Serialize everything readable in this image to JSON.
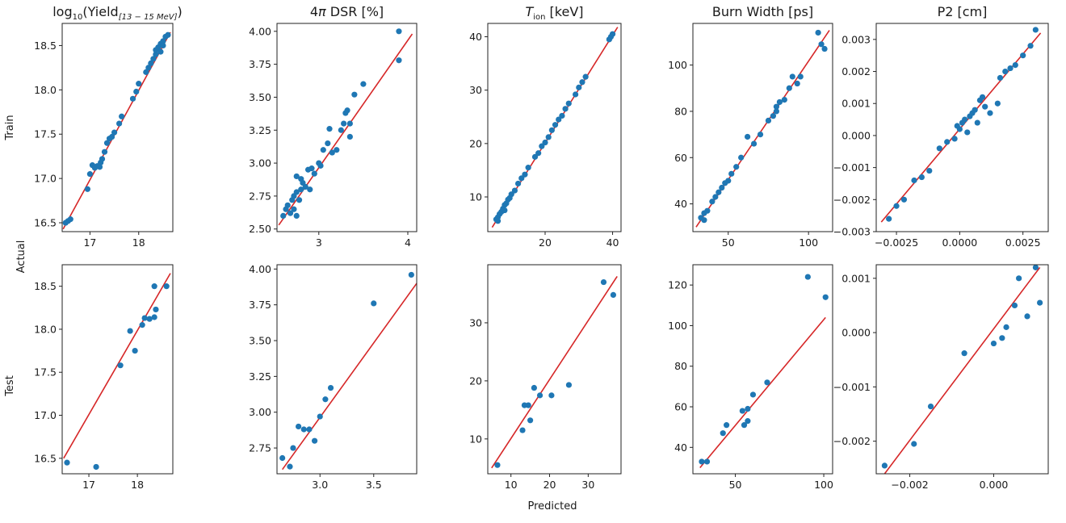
{
  "figure": {
    "x_label": "Predicted",
    "y_label": "Actual",
    "row_labels": [
      "Train",
      "Test"
    ],
    "point_color": "#1f77b4",
    "line_color": "#d62728"
  },
  "chart_data": [
    {
      "type": "scatter",
      "row": "Train",
      "title_parts": [
        "log",
        "10",
        "(Yield",
        "[13 − 15 MeV]",
        ")"
      ],
      "xlim": [
        16.43,
        18.7
      ],
      "ylim": [
        16.4,
        18.75
      ],
      "xticks": [
        17,
        18
      ],
      "xtick_labels": [
        "17",
        "18"
      ],
      "yticks": [
        16.5,
        17.0,
        17.5,
        18.0,
        18.5
      ],
      "ytick_labels": [
        "16.5",
        "17.0",
        "17.5",
        "18.0",
        "18.5"
      ],
      "fit_line": [
        [
          16.45,
          16.43
        ],
        [
          18.65,
          18.65
        ]
      ],
      "points": [
        [
          16.5,
          16.5
        ],
        [
          16.55,
          16.52
        ],
        [
          16.6,
          16.54
        ],
        [
          16.95,
          16.88
        ],
        [
          17.0,
          17.05
        ],
        [
          17.05,
          17.15
        ],
        [
          17.1,
          17.12
        ],
        [
          17.15,
          17.14
        ],
        [
          17.2,
          17.13
        ],
        [
          17.22,
          17.18
        ],
        [
          17.25,
          17.22
        ],
        [
          17.3,
          17.3
        ],
        [
          17.35,
          17.4
        ],
        [
          17.4,
          17.45
        ],
        [
          17.45,
          17.47
        ],
        [
          17.5,
          17.52
        ],
        [
          17.6,
          17.62
        ],
        [
          17.65,
          17.7
        ],
        [
          17.88,
          17.9
        ],
        [
          17.95,
          17.98
        ],
        [
          18.0,
          18.07
        ],
        [
          18.15,
          18.2
        ],
        [
          18.2,
          18.25
        ],
        [
          18.25,
          18.3
        ],
        [
          18.3,
          18.35
        ],
        [
          18.35,
          18.4
        ],
        [
          18.4,
          18.48
        ],
        [
          18.45,
          18.52
        ],
        [
          18.5,
          18.55
        ],
        [
          18.55,
          18.6
        ],
        [
          18.6,
          18.62
        ],
        [
          18.35,
          18.45
        ],
        [
          18.5,
          18.5
        ],
        [
          18.45,
          18.43
        ]
      ]
    },
    {
      "type": "scatter",
      "row": "Train",
      "title_parts": [
        "4",
        "π",
        " DSR [%]"
      ],
      "xlim": [
        2.53,
        4.1
      ],
      "ylim": [
        2.48,
        4.06
      ],
      "xticks": [
        3,
        4
      ],
      "xtick_labels": [
        "3",
        "4"
      ],
      "yticks": [
        2.5,
        2.75,
        3.0,
        3.25,
        3.5,
        3.75,
        4.0
      ],
      "ytick_labels": [
        "2.50",
        "2.75",
        "3.00",
        "3.25",
        "3.50",
        "3.75",
        "4.00"
      ],
      "fit_line": [
        [
          2.55,
          2.53
        ],
        [
          4.05,
          3.98
        ]
      ],
      "points": [
        [
          2.6,
          2.6
        ],
        [
          2.63,
          2.65
        ],
        [
          2.65,
          2.68
        ],
        [
          2.68,
          2.62
        ],
        [
          2.7,
          2.72
        ],
        [
          2.72,
          2.75
        ],
        [
          2.72,
          2.65
        ],
        [
          2.75,
          2.6
        ],
        [
          2.75,
          2.78
        ],
        [
          2.78,
          2.72
        ],
        [
          2.8,
          2.8
        ],
        [
          2.8,
          2.88
        ],
        [
          2.82,
          2.85
        ],
        [
          2.85,
          2.82
        ],
        [
          2.88,
          2.95
        ],
        [
          2.9,
          2.8
        ],
        [
          2.92,
          2.96
        ],
        [
          2.95,
          2.92
        ],
        [
          3.0,
          3.0
        ],
        [
          3.02,
          2.98
        ],
        [
          3.05,
          3.1
        ],
        [
          3.1,
          3.15
        ],
        [
          3.12,
          3.26
        ],
        [
          3.15,
          3.08
        ],
        [
          3.2,
          3.1
        ],
        [
          3.25,
          3.25
        ],
        [
          3.28,
          3.3
        ],
        [
          3.3,
          3.38
        ],
        [
          3.32,
          3.4
        ],
        [
          3.35,
          3.3
        ],
        [
          3.35,
          3.2
        ],
        [
          3.4,
          3.52
        ],
        [
          3.5,
          3.6
        ],
        [
          3.9,
          4.0
        ],
        [
          3.9,
          3.78
        ],
        [
          2.75,
          2.9
        ]
      ]
    },
    {
      "type": "scatter",
      "row": "Train",
      "title_parts": [
        "T",
        "ion",
        " [keV]"
      ],
      "xlim": [
        3,
        42.5
      ],
      "ylim": [
        3.5,
        42.5
      ],
      "xticks": [
        20,
        40
      ],
      "xtick_labels": [
        "20",
        "40"
      ],
      "yticks": [
        10,
        20,
        30,
        40
      ],
      "ytick_labels": [
        "10",
        "20",
        "30",
        "40"
      ],
      "fit_line": [
        [
          4.3,
          4.3
        ],
        [
          41.5,
          41.8
        ]
      ],
      "points": [
        [
          5.5,
          5.8
        ],
        [
          6,
          6.2
        ],
        [
          6.5,
          6.8
        ],
        [
          7,
          7.2
        ],
        [
          7.5,
          7.8
        ],
        [
          8,
          8.5
        ],
        [
          8.5,
          8.8
        ],
        [
          9,
          9.5
        ],
        [
          9.5,
          9.8
        ],
        [
          10,
          10.5
        ],
        [
          11,
          11.2
        ],
        [
          12,
          12.5
        ],
        [
          13,
          13.5
        ],
        [
          14,
          14.2
        ],
        [
          15,
          15.5
        ],
        [
          17,
          17.5
        ],
        [
          18,
          18.2
        ],
        [
          19,
          19.5
        ],
        [
          20,
          20.2
        ],
        [
          21,
          21.2
        ],
        [
          22,
          22.5
        ],
        [
          23,
          23.5
        ],
        [
          24,
          24.5
        ],
        [
          25,
          25.2
        ],
        [
          26,
          26.5
        ],
        [
          27,
          27.5
        ],
        [
          29,
          29.2
        ],
        [
          30,
          30.5
        ],
        [
          31,
          31.5
        ],
        [
          32,
          32.5
        ],
        [
          39,
          39.5
        ],
        [
          39.5,
          40
        ],
        [
          40,
          40.5
        ],
        [
          6,
          5.5
        ],
        [
          8,
          7.5
        ]
      ]
    },
    {
      "type": "scatter",
      "row": "Train",
      "title_parts": [
        "Burn Width [ps]"
      ],
      "xlim": [
        28,
        115
      ],
      "ylim": [
        28,
        118
      ],
      "xticks": [
        50,
        100
      ],
      "xtick_labels": [
        "50",
        "100"
      ],
      "yticks": [
        40,
        60,
        80,
        100
      ],
      "ytick_labels": [
        "40",
        "60",
        "80",
        "100"
      ],
      "fit_line": [
        [
          30,
          30
        ],
        [
          113,
          115
        ]
      ],
      "points": [
        [
          33,
          34
        ],
        [
          35,
          36
        ],
        [
          37,
          37
        ],
        [
          40,
          41
        ],
        [
          42,
          43
        ],
        [
          44,
          45
        ],
        [
          46,
          47
        ],
        [
          48,
          49
        ],
        [
          50,
          50
        ],
        [
          52,
          53
        ],
        [
          55,
          56
        ],
        [
          58,
          60
        ],
        [
          62,
          69
        ],
        [
          66,
          66
        ],
        [
          70,
          70
        ],
        [
          75,
          76
        ],
        [
          78,
          78
        ],
        [
          80,
          80
        ],
        [
          82,
          84
        ],
        [
          85,
          85
        ],
        [
          88,
          90
        ],
        [
          90,
          95
        ],
        [
          93,
          92
        ],
        [
          95,
          95
        ],
        [
          106,
          114
        ],
        [
          108,
          109
        ],
        [
          110,
          107
        ],
        [
          35,
          33
        ],
        [
          80,
          82
        ]
      ]
    },
    {
      "type": "scatter",
      "row": "Train",
      "title_parts": [
        "P2 [cm]"
      ],
      "xlim": [
        -0.0033,
        0.0035
      ],
      "ylim": [
        -0.003,
        0.0035
      ],
      "xticks": [
        -0.0025,
        0.0,
        0.0025
      ],
      "xtick_labels": [
        "−0.0025",
        "0.0000",
        "0.0025"
      ],
      "yticks": [
        -0.003,
        -0.002,
        -0.001,
        0.0,
        0.001,
        0.002,
        0.003
      ],
      "ytick_labels": [
        "−0.003",
        "−0.002",
        "−0.001",
        "0.000",
        "0.001",
        "0.002",
        "0.003"
      ],
      "fit_line": [
        [
          -0.0031,
          -0.0027
        ],
        [
          0.0032,
          0.0032
        ]
      ],
      "points": [
        [
          -0.0028,
          -0.0026
        ],
        [
          -0.0025,
          -0.0022
        ],
        [
          -0.0022,
          -0.002
        ],
        [
          -0.0018,
          -0.0014
        ],
        [
          -0.0015,
          -0.0013
        ],
        [
          -0.0012,
          -0.0011
        ],
        [
          -0.0008,
          -0.0004
        ],
        [
          -0.0005,
          -0.0002
        ],
        [
          -0.0002,
          -0.0001
        ],
        [
          0.0,
          0.0002
        ],
        [
          0.0001,
          0.0004
        ],
        [
          0.0002,
          0.0005
        ],
        [
          0.0004,
          0.0006
        ],
        [
          0.0005,
          0.0007
        ],
        [
          0.0006,
          0.0008
        ],
        [
          0.0007,
          0.0004
        ],
        [
          0.0008,
          0.0011
        ],
        [
          0.0009,
          0.0012
        ],
        [
          0.001,
          0.0009
        ],
        [
          0.0012,
          0.0007
        ],
        [
          0.0015,
          0.001
        ],
        [
          0.0016,
          0.0018
        ],
        [
          0.0018,
          0.002
        ],
        [
          0.002,
          0.0021
        ],
        [
          0.0022,
          0.0022
        ],
        [
          0.0025,
          0.0025
        ],
        [
          0.0028,
          0.0028
        ],
        [
          0.003,
          0.0033
        ],
        [
          -0.0001,
          0.0003
        ],
        [
          0.0003,
          0.0001
        ]
      ]
    },
    {
      "type": "scatter",
      "row": "Test",
      "title_parts": [],
      "xlim": [
        16.45,
        18.73
      ],
      "ylim": [
        16.32,
        18.75
      ],
      "xticks": [
        17,
        18
      ],
      "xtick_labels": [
        "17",
        "18"
      ],
      "yticks": [
        16.5,
        17.0,
        17.5,
        18.0,
        18.5
      ],
      "ytick_labels": [
        "16.5",
        "17.0",
        "17.5",
        "18.0",
        "18.5"
      ],
      "fit_line": [
        [
          16.48,
          16.5
        ],
        [
          18.68,
          18.65
        ]
      ],
      "points": [
        [
          16.55,
          16.45
        ],
        [
          17.15,
          16.4
        ],
        [
          17.65,
          17.58
        ],
        [
          17.85,
          17.98
        ],
        [
          17.95,
          17.75
        ],
        [
          18.1,
          18.05
        ],
        [
          18.15,
          18.13
        ],
        [
          18.25,
          18.12
        ],
        [
          18.35,
          18.14
        ],
        [
          18.38,
          18.23
        ],
        [
          18.35,
          18.5
        ],
        [
          18.6,
          18.5
        ]
      ]
    },
    {
      "type": "scatter",
      "row": "Test",
      "title_parts": [],
      "xlim": [
        2.6,
        3.9
      ],
      "ylim": [
        2.57,
        4.03
      ],
      "xticks": [
        3.0,
        3.5
      ],
      "xtick_labels": [
        "3.0",
        "3.5"
      ],
      "yticks": [
        2.75,
        3.0,
        3.25,
        3.5,
        3.75,
        4.0
      ],
      "ytick_labels": [
        "2.75",
        "3.00",
        "3.25",
        "3.50",
        "3.75",
        "4.00"
      ],
      "fit_line": [
        [
          2.65,
          2.6
        ],
        [
          3.9,
          3.9
        ]
      ],
      "points": [
        [
          2.65,
          2.68
        ],
        [
          2.72,
          2.62
        ],
        [
          2.75,
          2.75
        ],
        [
          2.8,
          2.9
        ],
        [
          2.85,
          2.88
        ],
        [
          2.9,
          2.88
        ],
        [
          2.95,
          2.8
        ],
        [
          3.0,
          2.97
        ],
        [
          3.05,
          3.09
        ],
        [
          3.1,
          3.17
        ],
        [
          3.5,
          3.76
        ],
        [
          3.85,
          3.96
        ]
      ]
    },
    {
      "type": "scatter",
      "row": "Test",
      "title_parts": [],
      "xlim": [
        4,
        38.5
      ],
      "ylim": [
        4,
        40
      ],
      "xticks": [
        10,
        20,
        30
      ],
      "xtick_labels": [
        "10",
        "20",
        "30"
      ],
      "yticks": [
        10,
        20,
        30
      ],
      "yticks_note": "",
      "ytick_labels": [
        "10",
        "20",
        "30"
      ],
      "fit_line": [
        [
          5,
          5
        ],
        [
          37.5,
          38
        ]
      ],
      "points": [
        [
          6.5,
          5.5
        ],
        [
          13,
          11.5
        ],
        [
          13.5,
          15.8
        ],
        [
          14.5,
          15.8
        ],
        [
          15,
          13.2
        ],
        [
          16,
          18.8
        ],
        [
          17.5,
          17.5
        ],
        [
          20.5,
          17.5
        ],
        [
          25,
          19.3
        ],
        [
          34,
          37
        ],
        [
          36.5,
          34.8
        ]
      ]
    },
    {
      "type": "scatter",
      "row": "Test",
      "title_parts": [],
      "xlim": [
        26,
        105
      ],
      "ylim": [
        27,
        130
      ],
      "xticks": [
        50,
        100
      ],
      "xtick_labels": [
        "50",
        "100"
      ],
      "yticks": [
        40,
        60,
        80,
        100,
        120
      ],
      "ytick_labels": [
        "40",
        "60",
        "80",
        "100",
        "120"
      ],
      "fit_line": [
        [
          30,
          30
        ],
        [
          101,
          104
        ]
      ],
      "points": [
        [
          31,
          33
        ],
        [
          34,
          33
        ],
        [
          43,
          47
        ],
        [
          45,
          51
        ],
        [
          54,
          58
        ],
        [
          55,
          51
        ],
        [
          57,
          53
        ],
        [
          57,
          59
        ],
        [
          60,
          66
        ],
        [
          68,
          72
        ],
        [
          91,
          124
        ],
        [
          101,
          114
        ]
      ]
    },
    {
      "type": "scatter",
      "row": "Test",
      "title_parts": [],
      "xlim": [
        -0.0028,
        0.0013
      ],
      "ylim": [
        -0.0026,
        0.00125
      ],
      "xticks": [
        -0.002,
        0.0
      ],
      "xtick_labels": [
        "−0.002",
        "0.000"
      ],
      "yticks": [
        -0.002,
        -0.001,
        0.0,
        0.001
      ],
      "ytick_labels": [
        "−0.002",
        "−0.001",
        "0.000",
        "0.001"
      ],
      "fit_line": [
        [
          -0.0026,
          -0.0026
        ],
        [
          0.0011,
          0.0012
        ]
      ],
      "points": [
        [
          -0.0026,
          -0.00245
        ],
        [
          -0.0019,
          -0.00205
        ],
        [
          -0.0015,
          -0.00136
        ],
        [
          -0.0007,
          -0.00038
        ],
        [
          0.0,
          -0.0002
        ],
        [
          0.0002,
          -0.0001
        ],
        [
          0.0003,
          0.0001
        ],
        [
          0.0005,
          0.0005
        ],
        [
          0.0006,
          0.001
        ],
        [
          0.0008,
          0.0003
        ],
        [
          0.001,
          0.0012
        ],
        [
          0.0011,
          0.00055
        ]
      ]
    }
  ]
}
